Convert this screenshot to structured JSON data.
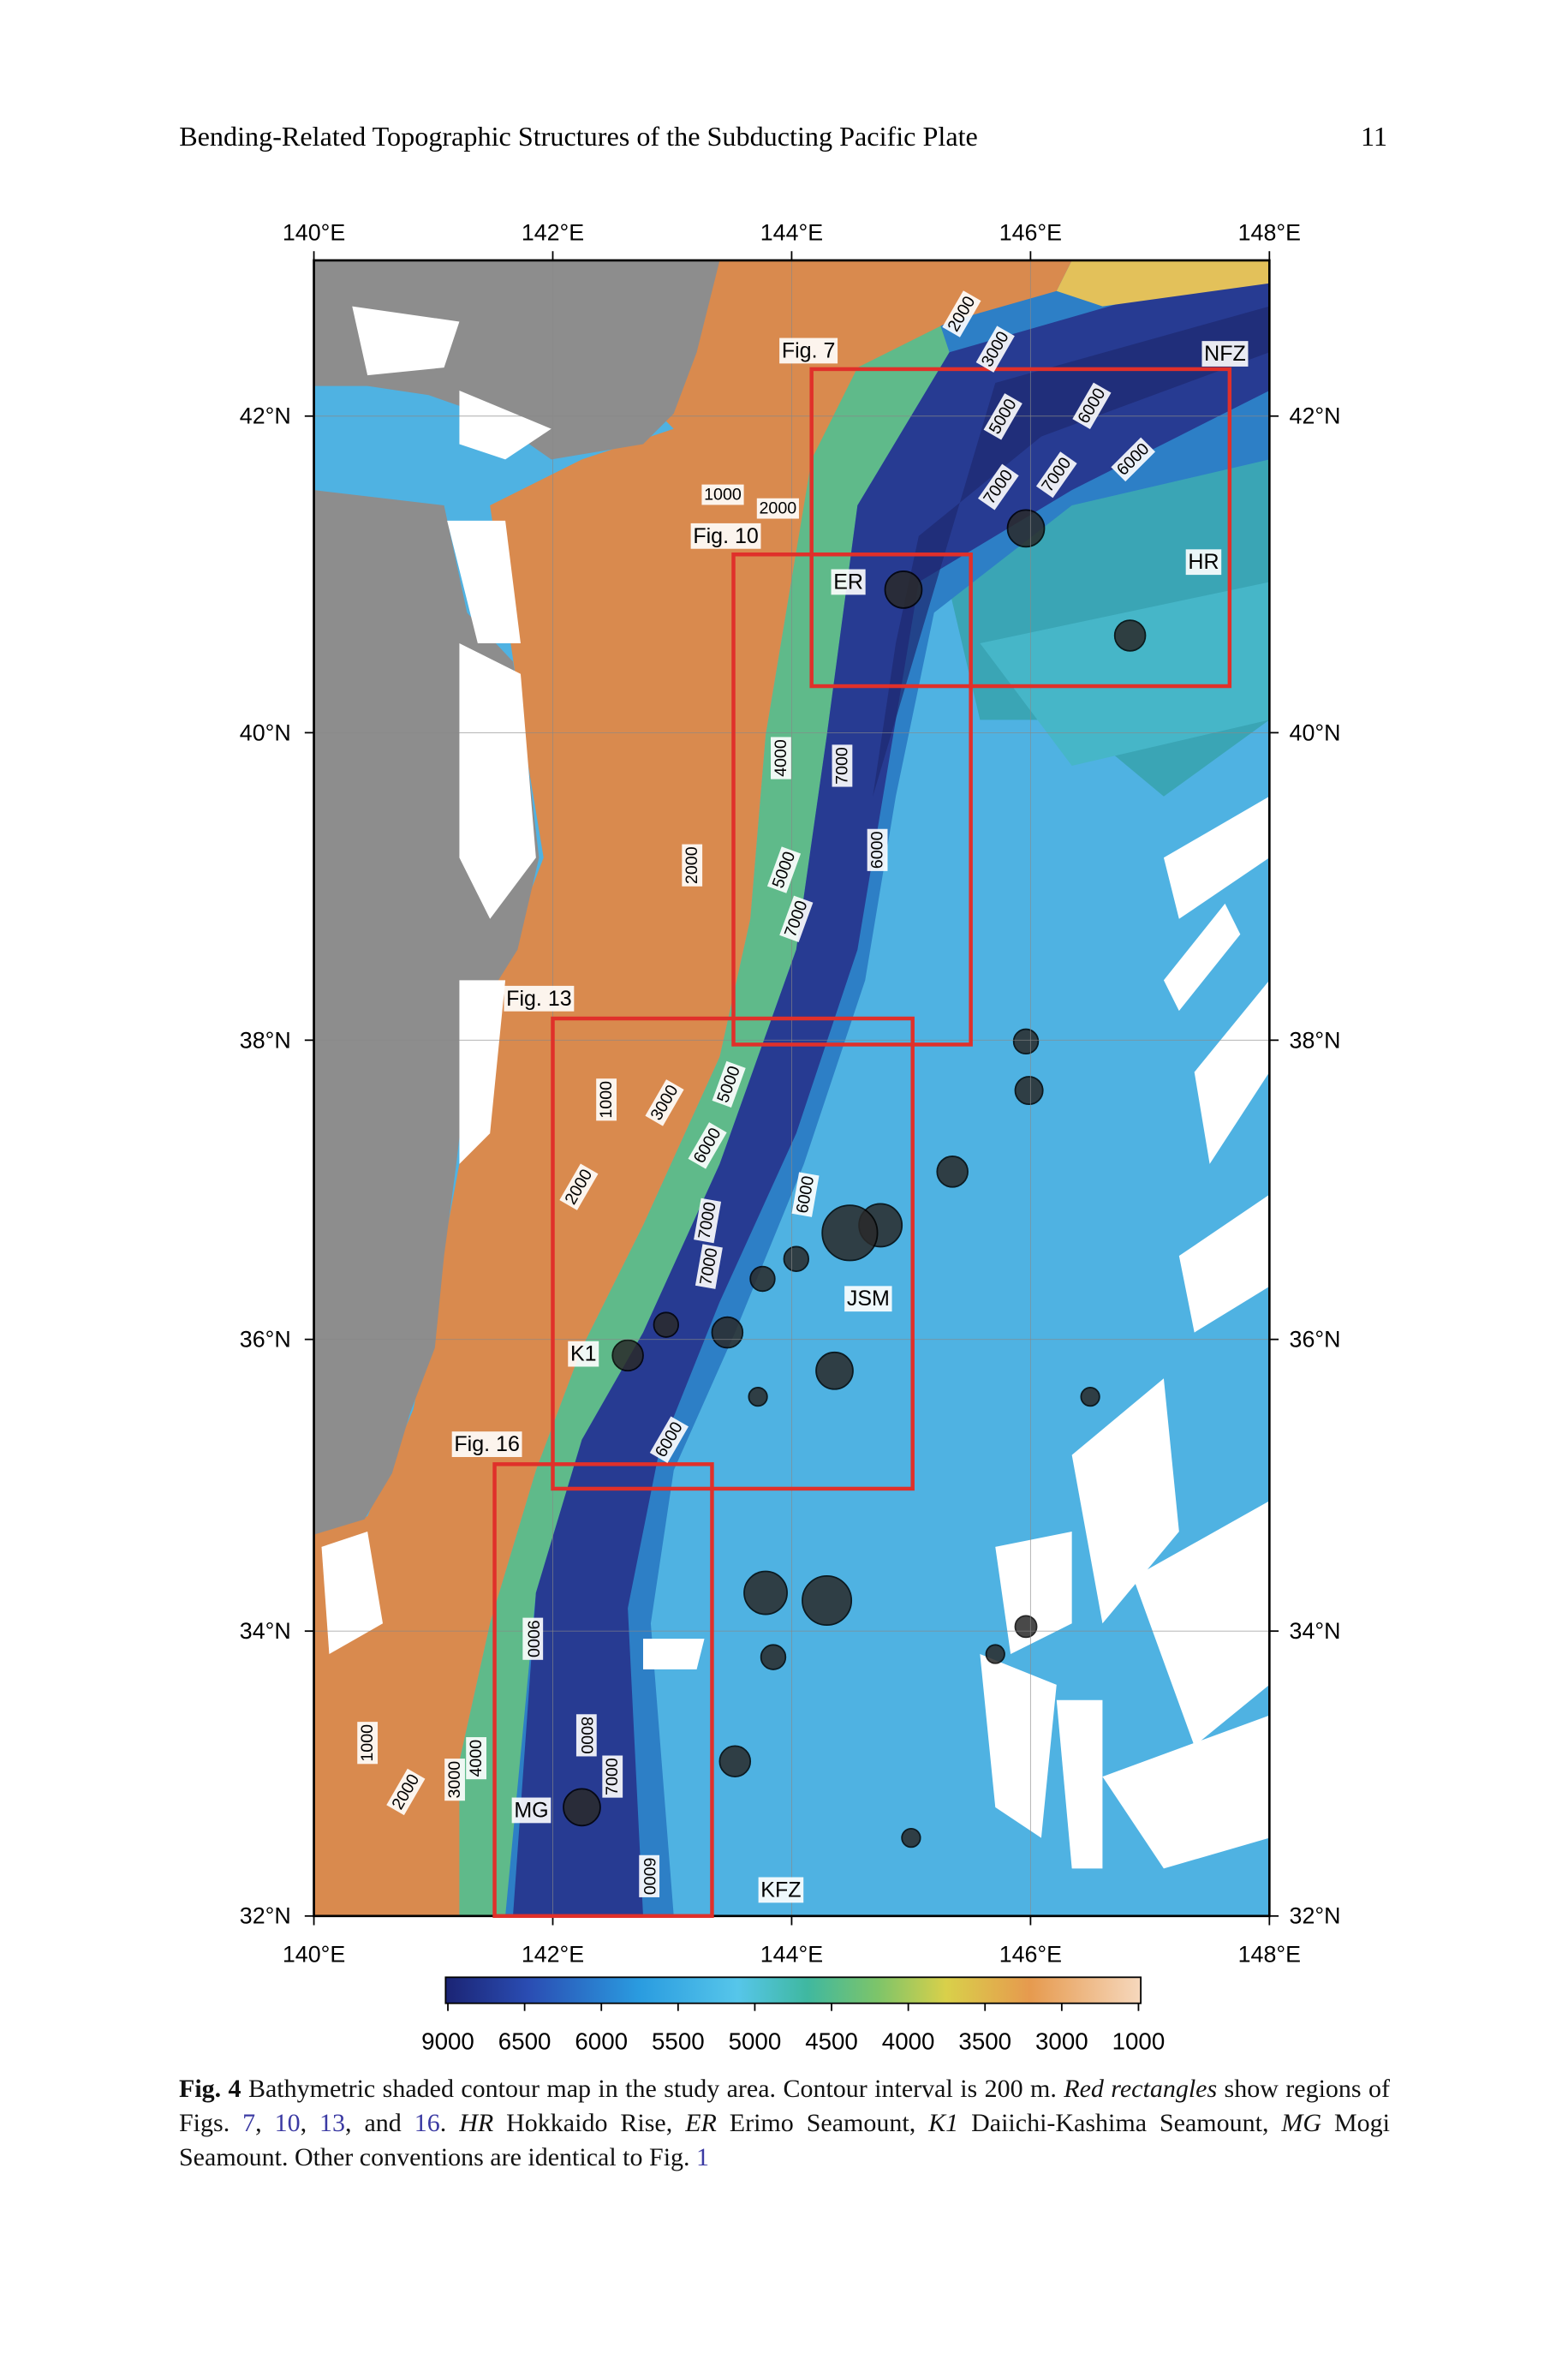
{
  "header": {
    "title": "Bending-Related Topographic Structures of the Subducting Pacific Plate",
    "page_number": "11"
  },
  "figure": {
    "lon_ticks": [
      {
        "value": 140,
        "label": "140°E"
      },
      {
        "value": 142,
        "label": "142°E"
      },
      {
        "value": 144,
        "label": "144°E"
      },
      {
        "value": 146,
        "label": "146°E"
      },
      {
        "value": 148,
        "label": "148°E"
      }
    ],
    "lat_ticks": [
      {
        "value": 32,
        "label": "32°N"
      },
      {
        "value": 34,
        "label": "34°N"
      },
      {
        "value": 36,
        "label": "36°N"
      },
      {
        "value": 38,
        "label": "38°N"
      },
      {
        "value": 40,
        "label": "40°N"
      },
      {
        "value": 42,
        "label": "42°N"
      }
    ],
    "region_labels": [
      "Fig. 7",
      "Fig. 10",
      "Fig. 13",
      "Fig. 16"
    ],
    "feature_labels": [
      "NFZ",
      "HR",
      "ER",
      "JSM",
      "K1",
      "MG",
      "KFZ"
    ],
    "contour_labels": [
      2000,
      3000,
      5000,
      6000,
      7000,
      7000,
      6000,
      1000,
      2000,
      4000,
      7000,
      6000,
      2000,
      5000,
      7000,
      1000,
      3000,
      5000,
      6000,
      6000,
      2000,
      7000,
      7000,
      6000,
      9000,
      8000,
      7000,
      1000,
      3000,
      4000,
      2000,
      6000
    ],
    "colorbar": {
      "labels": [
        9000,
        6500,
        6000,
        5500,
        5000,
        4500,
        4000,
        3500,
        3000,
        1000
      ]
    }
  },
  "caption": {
    "label": "Fig. 4",
    "runs": [
      {
        "text": " Bathymetric shaded contour map in the study area. Contour interval is 200 m. ",
        "style": "plain"
      },
      {
        "text": "Red rectangles",
        "style": "italic"
      },
      {
        "text": " show regions of Figs. ",
        "style": "plain"
      },
      {
        "text": "7",
        "style": "link"
      },
      {
        "text": ", ",
        "style": "plain"
      },
      {
        "text": "10",
        "style": "link"
      },
      {
        "text": ", ",
        "style": "plain"
      },
      {
        "text": "13",
        "style": "link"
      },
      {
        "text": ", and ",
        "style": "plain"
      },
      {
        "text": "16",
        "style": "link"
      },
      {
        "text": ". ",
        "style": "plain"
      },
      {
        "text": "HR",
        "style": "italic"
      },
      {
        "text": " Hokkaido Rise, ",
        "style": "plain"
      },
      {
        "text": "ER",
        "style": "italic"
      },
      {
        "text": " Erimo Seamount, ",
        "style": "plain"
      },
      {
        "text": "K1",
        "style": "italic"
      },
      {
        "text": " Daiichi-Kashima Seamount, ",
        "style": "plain"
      },
      {
        "text": "MG",
        "style": "italic"
      },
      {
        "text": " Mogi Seamount. Other conventions are identical to Fig. ",
        "style": "plain"
      },
      {
        "text": "1",
        "style": "link"
      }
    ]
  }
}
